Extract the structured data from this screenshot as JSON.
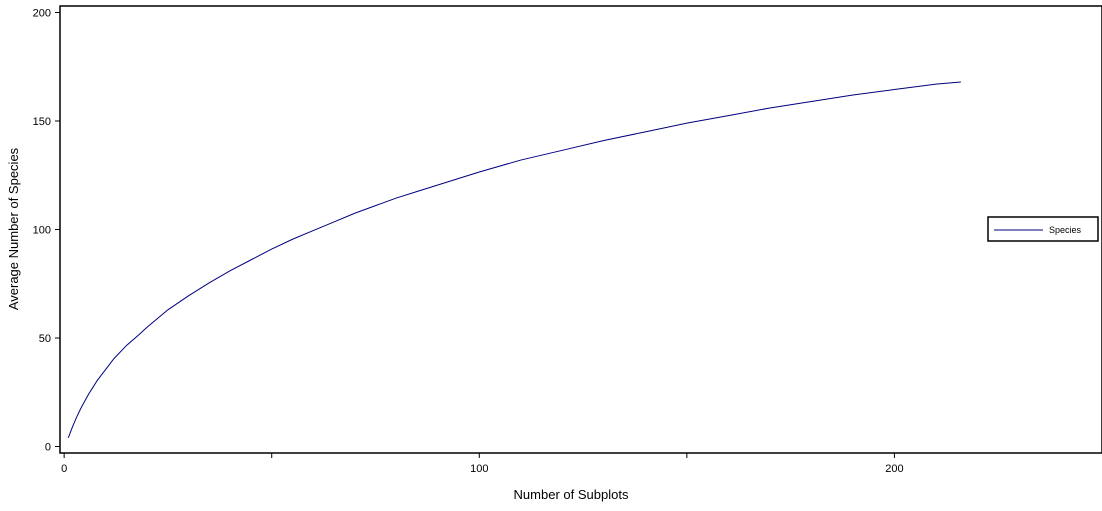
{
  "chart_data": {
    "type": "line",
    "title": "",
    "xlabel": "Number of Subplots",
    "ylabel": "Average Number of Species",
    "xlim": [
      -1,
      250
    ],
    "ylim": [
      -3,
      203
    ],
    "x_ticks_labeled": [
      0,
      100,
      200
    ],
    "x_ticks_minor": [
      50,
      150
    ],
    "y_ticks": [
      0,
      50,
      100,
      150,
      200
    ],
    "grid": false,
    "legend_position": "right",
    "series": [
      {
        "name": "Species",
        "color": "#00007f",
        "points": [
          [
            1,
            4
          ],
          [
            2,
            9
          ],
          [
            3,
            13.5
          ],
          [
            4,
            17.5
          ],
          [
            5,
            21
          ],
          [
            6,
            24.5
          ],
          [
            7,
            27.5
          ],
          [
            8,
            30.5
          ],
          [
            10,
            35.5
          ],
          [
            12,
            40.5
          ],
          [
            15,
            46.5
          ],
          [
            18,
            51.5
          ],
          [
            20,
            55
          ],
          [
            25,
            63
          ],
          [
            30,
            69.5
          ],
          [
            35,
            75.5
          ],
          [
            40,
            81
          ],
          [
            45,
            86
          ],
          [
            50,
            91
          ],
          [
            55,
            95.5
          ],
          [
            60,
            99.5
          ],
          [
            65,
            103.5
          ],
          [
            70,
            107.5
          ],
          [
            75,
            111
          ],
          [
            80,
            114.5
          ],
          [
            85,
            117.5
          ],
          [
            90,
            120.5
          ],
          [
            95,
            123.5
          ],
          [
            100,
            126.5
          ],
          [
            110,
            132
          ],
          [
            120,
            136.5
          ],
          [
            130,
            141
          ],
          [
            140,
            145
          ],
          [
            150,
            149
          ],
          [
            160,
            152.5
          ],
          [
            170,
            156
          ],
          [
            180,
            159
          ],
          [
            190,
            162
          ],
          [
            200,
            164.5
          ],
          [
            210,
            167
          ],
          [
            216,
            168
          ]
        ]
      }
    ]
  }
}
